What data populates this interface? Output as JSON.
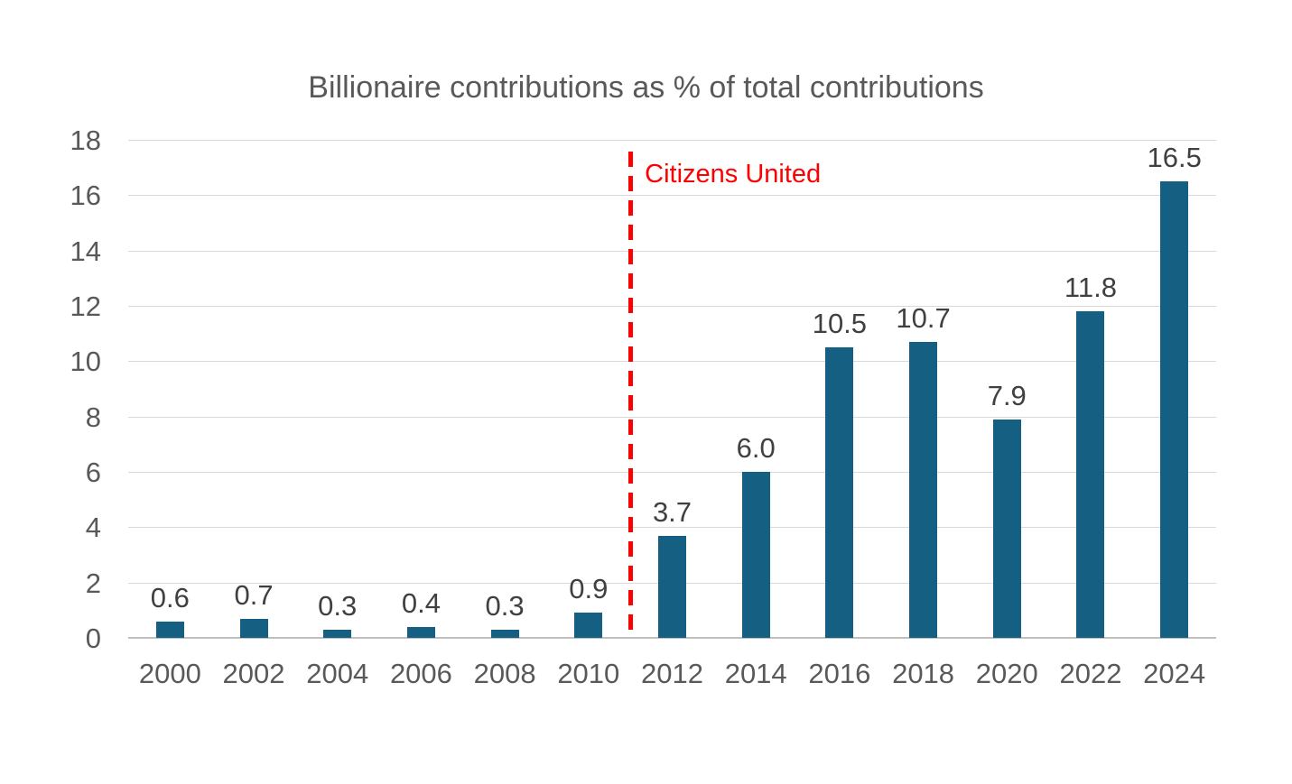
{
  "chart_data": {
    "type": "bar",
    "title": "Billionaire contributions as % of total contributions",
    "categories": [
      "2000",
      "2002",
      "2004",
      "2006",
      "2008",
      "2010",
      "2012",
      "2014",
      "2016",
      "2018",
      "2020",
      "2022",
      "2024"
    ],
    "values": [
      0.6,
      0.7,
      0.3,
      0.4,
      0.3,
      0.9,
      3.7,
      6.0,
      10.5,
      10.7,
      7.9,
      11.8,
      16.5
    ],
    "value_labels": [
      "0.6",
      "0.7",
      "0.3",
      "0.4",
      "0.3",
      "0.9",
      "3.7",
      "6.0",
      "10.5",
      "10.7",
      "7.9",
      "11.8",
      "16.5"
    ],
    "xlabel": "",
    "ylabel": "",
    "ylim": [
      0,
      18
    ],
    "yticks": [
      0,
      2,
      4,
      6,
      8,
      10,
      12,
      14,
      16,
      18
    ],
    "grid": true,
    "legend": "none",
    "bar_color": "#156082",
    "annotation": {
      "text": "Citizens United",
      "color": "#ff0000",
      "line_style": "dashed",
      "position": "vertical line between 2010 and 2012",
      "after_category_index": 5
    },
    "colors": {
      "title": "#595959",
      "axis_labels": "#595959",
      "data_labels": "#404040",
      "gridline": "#d9d9d9",
      "axis_line": "#bfbfbf",
      "background": "#ffffff"
    }
  }
}
